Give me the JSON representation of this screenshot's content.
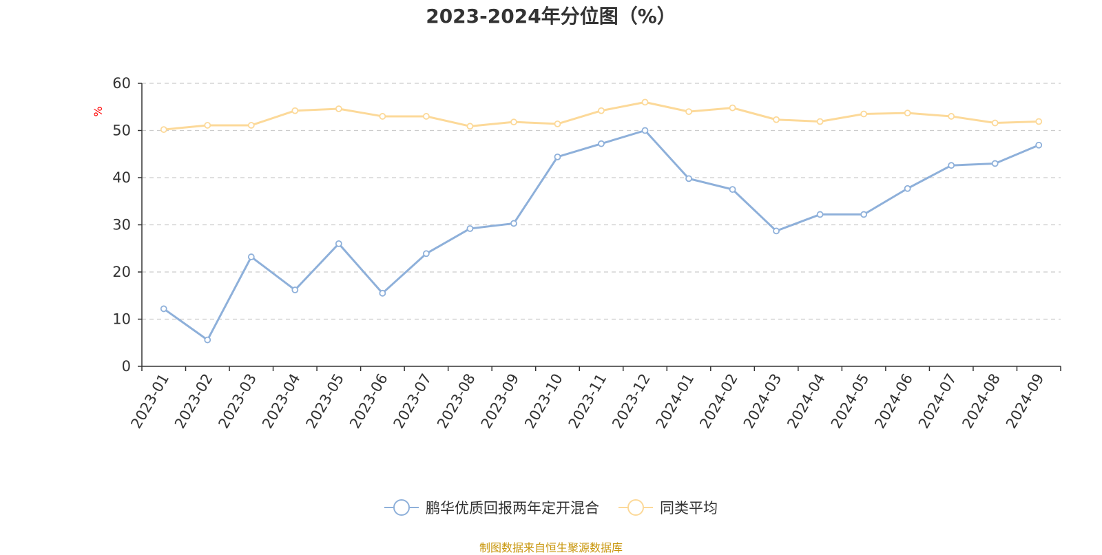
{
  "title": "2023-2024年分位图（%）",
  "source_note": "制图数据来自恒生聚源数据库",
  "colors": {
    "series1": "#8eb0da",
    "series2": "#fcd999",
    "axis": "#333333",
    "grid": "#cccccc",
    "ylabel": "#ff0000",
    "source": "#c8960c"
  },
  "chart_data": {
    "type": "line",
    "title": "2023-2024年分位图（%）",
    "xlabel": "",
    "ylabel": "%",
    "ylim": [
      0,
      60
    ],
    "yticks": [
      0,
      10,
      20,
      30,
      40,
      50,
      60
    ],
    "grid": "horizontal-dashed",
    "legend_position": "bottom",
    "categories": [
      "2023-01",
      "2023-02",
      "2023-03",
      "2023-04",
      "2023-05",
      "2023-06",
      "2023-07",
      "2023-08",
      "2023-09",
      "2023-10",
      "2023-11",
      "2023-12",
      "2024-01",
      "2024-02",
      "2024-03",
      "2024-04",
      "2024-05",
      "2024-06",
      "2024-07",
      "2024-08",
      "2024-09"
    ],
    "series": [
      {
        "name": "鹏华优质回报两年定开混合",
        "values": [
          12.2,
          5.6,
          23.2,
          16.2,
          26.0,
          15.5,
          23.9,
          29.2,
          30.3,
          44.4,
          47.2,
          50.0,
          39.8,
          37.5,
          28.7,
          32.2,
          32.2,
          37.7,
          42.6,
          43.0,
          46.9
        ]
      },
      {
        "name": "同类平均",
        "values": [
          50.2,
          51.1,
          51.1,
          54.2,
          54.6,
          53.0,
          53.0,
          50.9,
          51.8,
          51.4,
          54.2,
          56.0,
          54.0,
          54.8,
          52.3,
          51.9,
          53.5,
          53.7,
          53.0,
          51.6,
          51.9
        ]
      }
    ]
  }
}
